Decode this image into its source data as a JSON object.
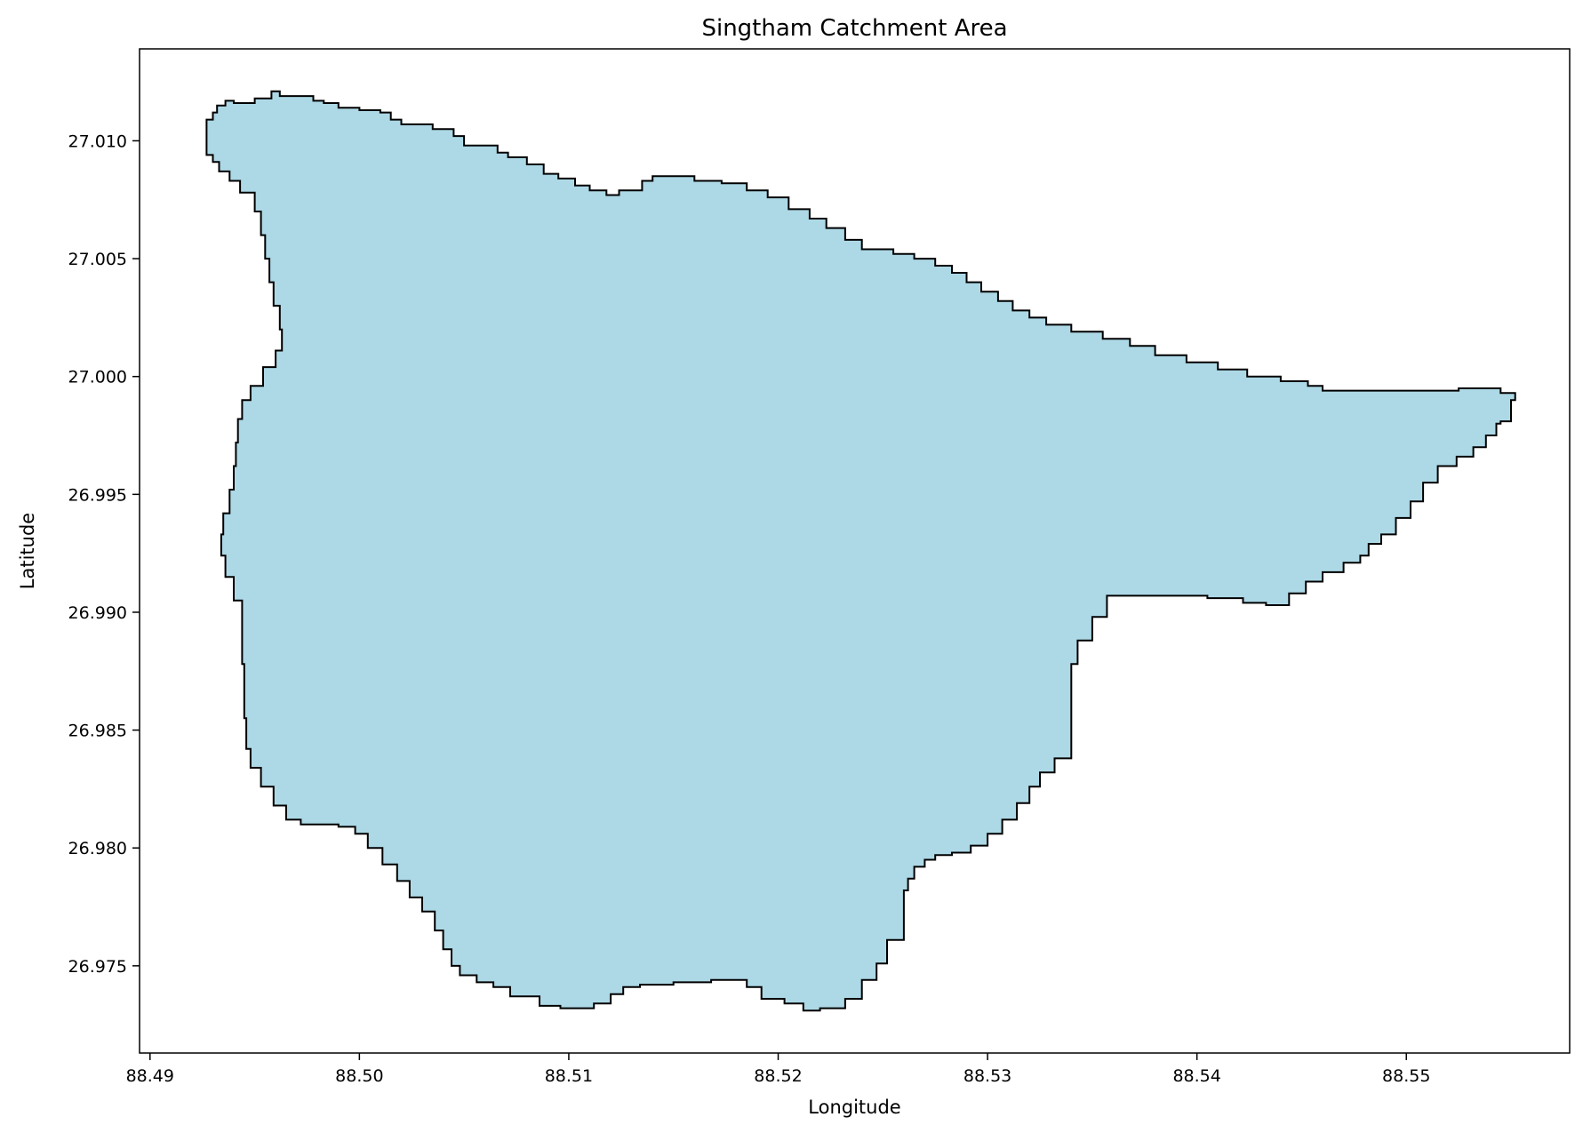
{
  "chart_data": {
    "type": "map",
    "title": "Singtham Catchment Area",
    "xlabel": "Longitude",
    "ylabel": "Latitude",
    "xlim": [
      88.4895,
      88.5578
    ],
    "ylim": [
      26.9713,
      27.0139
    ],
    "xticks": [
      {
        "value": 88.49,
        "label": "88.49"
      },
      {
        "value": 88.5,
        "label": "88.50"
      },
      {
        "value": 88.51,
        "label": "88.51"
      },
      {
        "value": 88.52,
        "label": "88.52"
      },
      {
        "value": 88.53,
        "label": "88.53"
      },
      {
        "value": 88.54,
        "label": "88.54"
      },
      {
        "value": 88.55,
        "label": "88.55"
      }
    ],
    "yticks": [
      {
        "value": 26.975,
        "label": "26.975"
      },
      {
        "value": 26.98,
        "label": "26.980"
      },
      {
        "value": 26.985,
        "label": "26.985"
      },
      {
        "value": 26.99,
        "label": "26.990"
      },
      {
        "value": 26.995,
        "label": "26.995"
      },
      {
        "value": 27.0,
        "label": "27.000"
      },
      {
        "value": 27.005,
        "label": "27.005"
      },
      {
        "value": 27.01,
        "label": "27.010"
      }
    ],
    "grid": false,
    "fill_color": "#add8e6",
    "edge_color": "#000000",
    "boundary": [
      [
        88.4927,
        27.0096
      ],
      [
        88.4927,
        27.0109
      ],
      [
        88.493,
        27.0112
      ],
      [
        88.4932,
        27.0115
      ],
      [
        88.4936,
        27.0117
      ],
      [
        88.494,
        27.0116
      ],
      [
        88.495,
        27.0118
      ],
      [
        88.4958,
        27.0121
      ],
      [
        88.4962,
        27.0119
      ],
      [
        88.4975,
        27.0119
      ],
      [
        88.4978,
        27.0117
      ],
      [
        88.4983,
        27.0116
      ],
      [
        88.499,
        27.0114
      ],
      [
        88.5,
        27.0113
      ],
      [
        88.501,
        27.0112
      ],
      [
        88.5015,
        27.0109
      ],
      [
        88.502,
        27.0107
      ],
      [
        88.5035,
        27.0105
      ],
      [
        88.5045,
        27.0102
      ],
      [
        88.505,
        27.0098
      ],
      [
        88.5063,
        27.0098
      ],
      [
        88.5066,
        27.0095
      ],
      [
        88.5071,
        27.0093
      ],
      [
        88.508,
        27.009
      ],
      [
        88.5088,
        27.0086
      ],
      [
        88.5095,
        27.0084
      ],
      [
        88.5103,
        27.0081
      ],
      [
        88.511,
        27.0079
      ],
      [
        88.5118,
        27.0077
      ],
      [
        88.5124,
        27.0079
      ],
      [
        88.5135,
        27.0083
      ],
      [
        88.514,
        27.0085
      ],
      [
        88.5155,
        27.0085
      ],
      [
        88.516,
        27.0083
      ],
      [
        88.5173,
        27.0082
      ],
      [
        88.5185,
        27.0079
      ],
      [
        88.5195,
        27.0076
      ],
      [
        88.5205,
        27.0071
      ],
      [
        88.5215,
        27.0067
      ],
      [
        88.5223,
        27.0063
      ],
      [
        88.5232,
        27.0058
      ],
      [
        88.524,
        27.0054
      ],
      [
        88.5255,
        27.0052
      ],
      [
        88.5265,
        27.005
      ],
      [
        88.5275,
        27.0047
      ],
      [
        88.5283,
        27.0044
      ],
      [
        88.529,
        27.004
      ],
      [
        88.5297,
        27.0036
      ],
      [
        88.5305,
        27.0032
      ],
      [
        88.5312,
        27.0028
      ],
      [
        88.532,
        27.0025
      ],
      [
        88.5328,
        27.0022
      ],
      [
        88.534,
        27.0019
      ],
      [
        88.5355,
        27.0016
      ],
      [
        88.5368,
        27.0013
      ],
      [
        88.538,
        27.0009
      ],
      [
        88.5395,
        27.0006
      ],
      [
        88.541,
        27.0003
      ],
      [
        88.5424,
        27.0
      ],
      [
        88.544,
        26.9998
      ],
      [
        88.5453,
        26.9996
      ],
      [
        88.546,
        26.9994
      ],
      [
        88.5485,
        26.9994
      ],
      [
        88.551,
        26.9994
      ],
      [
        88.5525,
        26.9995
      ],
      [
        88.5535,
        26.9995
      ],
      [
        88.5545,
        26.9993
      ],
      [
        88.5552,
        26.999
      ],
      [
        88.555,
        26.9981
      ],
      [
        88.5545,
        26.998
      ],
      [
        88.5543,
        26.9975
      ],
      [
        88.5538,
        26.997
      ],
      [
        88.5532,
        26.9966
      ],
      [
        88.5524,
        26.9962
      ],
      [
        88.5515,
        26.9955
      ],
      [
        88.5508,
        26.9947
      ],
      [
        88.5502,
        26.994
      ],
      [
        88.5495,
        26.9933
      ],
      [
        88.5488,
        26.9929
      ],
      [
        88.5482,
        26.9924
      ],
      [
        88.5478,
        26.9921
      ],
      [
        88.547,
        26.9917
      ],
      [
        88.546,
        26.9913
      ],
      [
        88.5452,
        26.9908
      ],
      [
        88.5444,
        26.9903
      ],
      [
        88.5433,
        26.9904
      ],
      [
        88.5422,
        26.9906
      ],
      [
        88.5405,
        26.9907
      ],
      [
        88.539,
        26.9907
      ],
      [
        88.537,
        26.9907
      ],
      [
        88.5357,
        26.9898
      ],
      [
        88.535,
        26.9888
      ],
      [
        88.5343,
        26.9878
      ],
      [
        88.534,
        26.9868
      ],
      [
        88.534,
        26.9857
      ],
      [
        88.534,
        26.9846
      ],
      [
        88.534,
        26.9838
      ],
      [
        88.5332,
        26.9832
      ],
      [
        88.5325,
        26.9826
      ],
      [
        88.532,
        26.9819
      ],
      [
        88.5314,
        26.9812
      ],
      [
        88.5307,
        26.9806
      ],
      [
        88.53,
        26.9801
      ],
      [
        88.5292,
        26.9798
      ],
      [
        88.5283,
        26.9797
      ],
      [
        88.5275,
        26.9795
      ],
      [
        88.527,
        26.9792
      ],
      [
        88.5265,
        26.9787
      ],
      [
        88.5262,
        26.9782
      ],
      [
        88.526,
        26.9775
      ],
      [
        88.526,
        26.9766
      ],
      [
        88.526,
        26.9761
      ],
      [
        88.5252,
        26.9751
      ],
      [
        88.5247,
        26.9744
      ],
      [
        88.524,
        26.9736
      ],
      [
        88.5232,
        26.9732
      ],
      [
        88.522,
        26.9731
      ],
      [
        88.5212,
        26.9734
      ],
      [
        88.5203,
        26.9736
      ],
      [
        88.5192,
        26.9741
      ],
      [
        88.5185,
        26.9744
      ],
      [
        88.5168,
        26.9743
      ],
      [
        88.515,
        26.9742
      ],
      [
        88.5134,
        26.9741
      ],
      [
        88.5126,
        26.9738
      ],
      [
        88.512,
        26.9734
      ],
      [
        88.5112,
        26.9732
      ],
      [
        88.5104,
        26.9732
      ],
      [
        88.5096,
        26.9733
      ],
      [
        88.5086,
        26.9737
      ],
      [
        88.5072,
        26.9741
      ],
      [
        88.5064,
        26.9743
      ],
      [
        88.5056,
        26.9746
      ],
      [
        88.5048,
        26.975
      ],
      [
        88.5044,
        26.9757
      ],
      [
        88.504,
        26.9765
      ],
      [
        88.5036,
        26.9773
      ],
      [
        88.503,
        26.9779
      ],
      [
        88.5024,
        26.9786
      ],
      [
        88.5018,
        26.9793
      ],
      [
        88.5011,
        26.98
      ],
      [
        88.5004,
        26.9806
      ],
      [
        88.4998,
        26.9809
      ],
      [
        88.499,
        26.981
      ],
      [
        88.498,
        26.981
      ],
      [
        88.4972,
        26.9812
      ],
      [
        88.4965,
        26.9818
      ],
      [
        88.4959,
        26.9826
      ],
      [
        88.4953,
        26.9834
      ],
      [
        88.4948,
        26.9842
      ],
      [
        88.4946,
        26.9855
      ],
      [
        88.4945,
        26.9867
      ],
      [
        88.4945,
        26.9878
      ],
      [
        88.4944,
        26.9888
      ],
      [
        88.4944,
        26.9895
      ],
      [
        88.4944,
        26.9905
      ],
      [
        88.494,
        26.9915
      ],
      [
        88.4936,
        26.9924
      ],
      [
        88.4934,
        26.9933
      ],
      [
        88.4935,
        26.9942
      ],
      [
        88.4938,
        26.9952
      ],
      [
        88.494,
        26.9962
      ],
      [
        88.4941,
        26.9972
      ],
      [
        88.4942,
        26.9982
      ],
      [
        88.4944,
        26.999
      ],
      [
        88.4948,
        26.9996
      ],
      [
        88.4954,
        27.0004
      ],
      [
        88.496,
        27.0011
      ],
      [
        88.4963,
        27.002
      ],
      [
        88.4962,
        27.003
      ],
      [
        88.4959,
        27.004
      ],
      [
        88.4957,
        27.005
      ],
      [
        88.4955,
        27.006
      ],
      [
        88.4953,
        27.007
      ],
      [
        88.495,
        27.0078
      ],
      [
        88.4943,
        27.0083
      ],
      [
        88.4938,
        27.0087
      ],
      [
        88.4933,
        27.0091
      ],
      [
        88.493,
        27.0094
      ],
      [
        88.4927,
        27.0096
      ]
    ]
  }
}
